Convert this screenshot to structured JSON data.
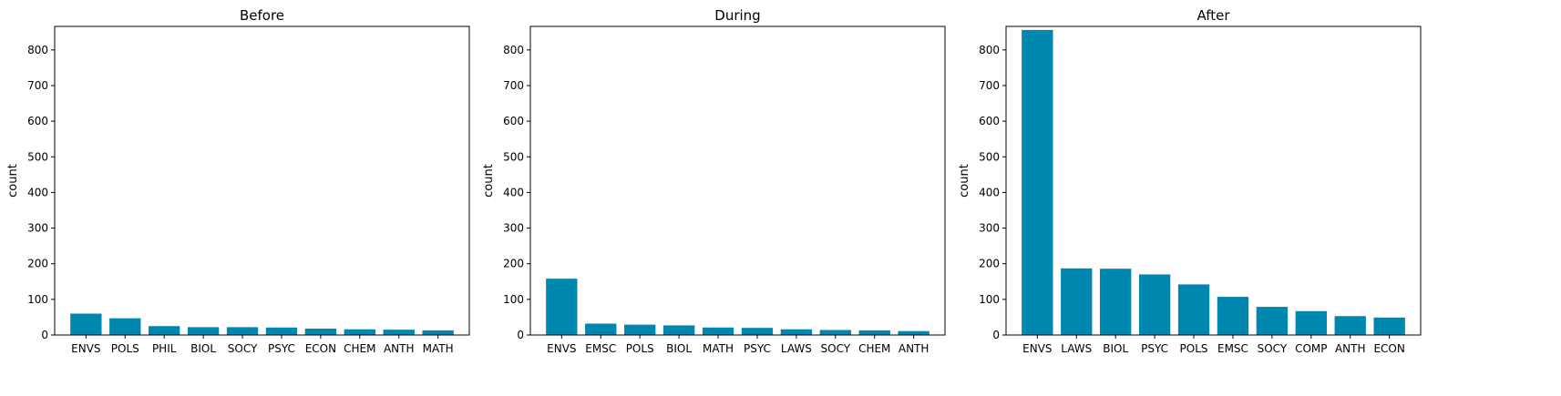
{
  "chart_data": [
    {
      "type": "bar",
      "title": "Before",
      "xlabel": "",
      "ylabel": "count",
      "ylim": [
        0,
        866
      ],
      "yticks": [
        0,
        100,
        200,
        300,
        400,
        500,
        600,
        700,
        800
      ],
      "categories": [
        "ENVS",
        "POLS",
        "PHIL",
        "BIOL",
        "SOCY",
        "PSYC",
        "ECON",
        "CHEM",
        "ANTH",
        "MATH"
      ],
      "values": [
        60,
        47,
        25,
        22,
        22,
        21,
        18,
        16,
        15,
        13
      ],
      "grid": false,
      "bar_color": "#0087AF"
    },
    {
      "type": "bar",
      "title": "During",
      "xlabel": "",
      "ylabel": "count",
      "ylim": [
        0,
        866
      ],
      "yticks": [
        0,
        100,
        200,
        300,
        400,
        500,
        600,
        700,
        800
      ],
      "categories": [
        "ENVS",
        "EMSC",
        "POLS",
        "BIOL",
        "MATH",
        "PSYC",
        "LAWS",
        "SOCY",
        "CHEM",
        "ANTH"
      ],
      "values": [
        158,
        32,
        29,
        27,
        21,
        20,
        16,
        14,
        13,
        11
      ],
      "grid": false,
      "bar_color": "#0087AF"
    },
    {
      "type": "bar",
      "title": "After",
      "xlabel": "",
      "ylabel": "count",
      "ylim": [
        0,
        866
      ],
      "yticks": [
        0,
        100,
        200,
        300,
        400,
        500,
        600,
        700,
        800
      ],
      "categories": [
        "ENVS",
        "LAWS",
        "BIOL",
        "PSYC",
        "POLS",
        "EMSC",
        "SOCY",
        "COMP",
        "ANTH",
        "ECON"
      ],
      "values": [
        856,
        187,
        186,
        170,
        142,
        107,
        79,
        67,
        53,
        49
      ],
      "grid": false,
      "bar_color": "#0087AF"
    }
  ]
}
